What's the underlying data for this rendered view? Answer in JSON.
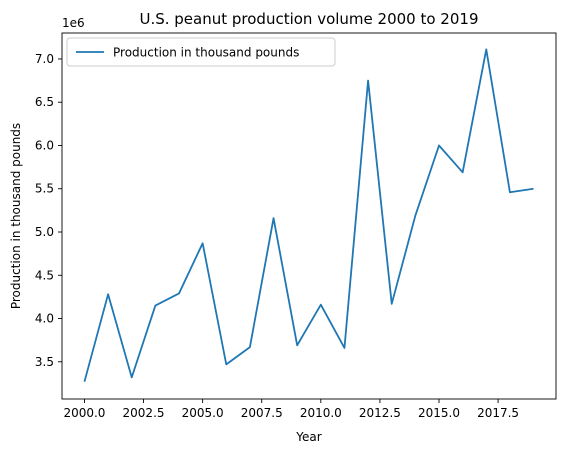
{
  "chart_data": {
    "type": "line",
    "title": "U.S. peanut production volume 2000 to 2019",
    "xlabel": "Year",
    "ylabel": "Production in thousand pounds",
    "y_offset_label": "1e6",
    "xlim": [
      1999.05,
      2019.95
    ],
    "ylim": [
      3.07,
      7.3
    ],
    "x_ticks": [
      2000.0,
      2002.5,
      2005.0,
      2007.5,
      2010.0,
      2012.5,
      2015.0,
      2017.5
    ],
    "x_tick_labels": [
      "2000.0",
      "2002.5",
      "2005.0",
      "2007.5",
      "2010.0",
      "2012.5",
      "2015.0",
      "2017.5"
    ],
    "y_ticks": [
      3.5,
      4.0,
      4.5,
      5.0,
      5.5,
      6.0,
      6.5,
      7.0
    ],
    "y_tick_labels": [
      "3.5",
      "4.0",
      "4.5",
      "5.0",
      "5.5",
      "6.0",
      "6.5",
      "7.0"
    ],
    "grid": false,
    "legend_position": "top-left",
    "x": [
      2000,
      2001,
      2002,
      2003,
      2004,
      2005,
      2006,
      2007,
      2008,
      2009,
      2010,
      2011,
      2012,
      2013,
      2014,
      2015,
      2016,
      2017,
      2018,
      2019
    ],
    "series": [
      {
        "name": "Production in thousand pounds",
        "color": "#1f77b4",
        "values": [
          3.27,
          4.28,
          3.32,
          4.15,
          4.29,
          4.87,
          3.47,
          3.67,
          5.16,
          3.69,
          4.16,
          3.66,
          6.75,
          4.17,
          5.19,
          6.0,
          5.69,
          7.11,
          5.46,
          5.5
        ]
      }
    ]
  }
}
